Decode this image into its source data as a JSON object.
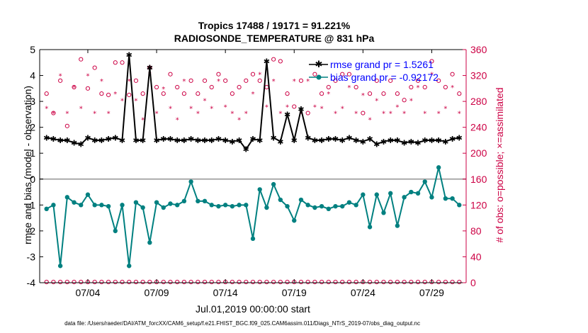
{
  "chart_data": {
    "type": "line",
    "title": "Tropics 17488 / 19171 = 91.221%",
    "subtitle": "RADIOSONDE_TEMPERATURE @ 831 hPa",
    "xlabel": "Jul.01,2019 00:00:00 start",
    "ylabel_left": "rmse and bias (model - observation)",
    "ylabel_right": "# of obs: o=possible; ×=assimilated",
    "xlim": [
      0.5,
      31.5
    ],
    "ylim_left": [
      -4,
      5
    ],
    "ylim_right": [
      0,
      360
    ],
    "x_ticks": [
      {
        "x": 4,
        "label": "07/04"
      },
      {
        "x": 9,
        "label": "07/09"
      },
      {
        "x": 14,
        "label": "07/14"
      },
      {
        "x": 19,
        "label": "07/19"
      },
      {
        "x": 24,
        "label": "07/24"
      },
      {
        "x": 29,
        "label": "07/29"
      }
    ],
    "y_ticks_left": [
      -4,
      -3,
      -2,
      -1,
      0,
      1,
      2,
      3,
      4,
      5
    ],
    "y_ticks_right": [
      0,
      40,
      80,
      120,
      160,
      200,
      240,
      280,
      320,
      360
    ],
    "x": [
      1.0,
      1.5,
      2.0,
      2.5,
      3.0,
      3.5,
      4.0,
      4.5,
      5.0,
      5.5,
      6.0,
      6.5,
      7.0,
      7.5,
      8.0,
      8.5,
      9.0,
      9.5,
      10.0,
      10.5,
      11.0,
      11.5,
      12.0,
      12.5,
      13.0,
      13.5,
      14.0,
      14.5,
      15.0,
      15.5,
      16.0,
      16.5,
      17.0,
      17.5,
      18.0,
      18.5,
      19.0,
      19.5,
      20.0,
      20.5,
      21.0,
      21.5,
      22.0,
      22.5,
      23.0,
      23.5,
      24.0,
      24.5,
      25.0,
      25.5,
      26.0,
      26.5,
      27.0,
      27.5,
      28.0,
      28.5,
      29.0,
      29.5,
      30.0,
      30.5,
      31.0
    ],
    "series": [
      {
        "name": "rmse grand pr = 1.5261",
        "axis": "left",
        "color": "#000000",
        "values": [
          1.6,
          1.55,
          1.5,
          1.5,
          1.4,
          1.35,
          1.6,
          1.5,
          1.5,
          1.55,
          1.6,
          1.5,
          4.8,
          1.5,
          1.5,
          4.3,
          1.5,
          1.55,
          1.55,
          1.5,
          1.5,
          1.55,
          1.5,
          1.5,
          1.5,
          1.55,
          1.5,
          1.45,
          1.5,
          1.15,
          1.55,
          1.5,
          4.55,
          1.6,
          1.45,
          2.5,
          1.5,
          2.7,
          1.6,
          1.5,
          1.5,
          1.55,
          1.55,
          1.5,
          1.6,
          1.5,
          1.45,
          1.55,
          1.35,
          1.45,
          1.5,
          1.5,
          1.4,
          1.45,
          1.4,
          1.5,
          1.5,
          1.5,
          1.45,
          1.55,
          1.6
        ]
      },
      {
        "name": "bias grand pr = -0.92172",
        "axis": "left",
        "color": "#008080",
        "values": [
          -1.15,
          -1.0,
          -3.35,
          -0.7,
          -0.9,
          -1.0,
          -0.6,
          -1.0,
          -1.0,
          -1.05,
          -2.0,
          -1.0,
          -3.35,
          -0.9,
          -1.1,
          -2.45,
          -0.9,
          -1.1,
          -0.95,
          -1.0,
          -0.85,
          -0.1,
          -0.85,
          -0.85,
          -1.0,
          -1.05,
          -1.0,
          -1.05,
          -1.0,
          -1.0,
          -2.3,
          -0.4,
          -1.1,
          -0.2,
          -0.8,
          -1.05,
          -1.6,
          -0.8,
          -1.0,
          -1.1,
          -1.05,
          -1.15,
          -1.05,
          -1.05,
          -0.9,
          -1.0,
          -0.6,
          -1.85,
          -0.6,
          -1.3,
          -0.55,
          -1.8,
          -0.7,
          -0.5,
          -0.55,
          -0.1,
          -0.7,
          0.45,
          -0.75,
          -0.75,
          -1.0
        ]
      },
      {
        "name": "possible",
        "axis": "right",
        "marker": "circle",
        "color": "#cc0044",
        "values": [
          292,
          262,
          312,
          242,
          302,
          345,
          300,
          332,
          292,
          290,
          340,
          340,
          290,
          312,
          292,
          332,
          302,
          292,
          322,
          302,
          292,
          312,
          292,
          312,
          302,
          322,
          312,
          292,
          302,
          312,
          322,
          312,
          302,
          345,
          342,
          292,
          272,
          312,
          262,
          322,
          292,
          302,
          312,
          322,
          322,
          302,
          262,
          292,
          312,
          292,
          312,
          292,
          282,
          302,
          312,
          302,
          342,
          312,
          302,
          322,
          292
        ]
      },
      {
        "name": "assimilated",
        "axis": "right",
        "marker": "star",
        "color": "#cc0044",
        "values": [
          270,
          262,
          320,
          262,
          302,
          270,
          320,
          262,
          312,
          262,
          292,
          282,
          312,
          282,
          252,
          322,
          262,
          300,
          270,
          252,
          312,
          270,
          262,
          282,
          270,
          312,
          272,
          262,
          252,
          262,
          292,
          322,
          272,
          312,
          262,
          272,
          312,
          262,
          312,
          272,
          270,
          292,
          262,
          270,
          302,
          262,
          290,
          252,
          282,
          262,
          262,
          272,
          262,
          282,
          302,
          262,
          322,
          262,
          270,
          302,
          262
        ]
      },
      {
        "name": "zero-line possible",
        "axis": "right",
        "marker": "circle",
        "color": "#cc0044",
        "values": "baseline"
      }
    ]
  },
  "legend": {
    "rmse": "rmse grand pr = 1.5261",
    "bias": "bias grand pr = -0.92172"
  },
  "footer": "data file: /Users/raeder/DAI/ATM_forcXX/CAM6_setup/f.e21.FHIST_BGC.f09_025.CAM6assim.011/Diags_NTrS_2019-07/obs_diag_output.nc",
  "colors": {
    "rmse": "#000000",
    "bias": "#008080",
    "obs": "#cc0044",
    "legend_text": "#0000ff"
  }
}
